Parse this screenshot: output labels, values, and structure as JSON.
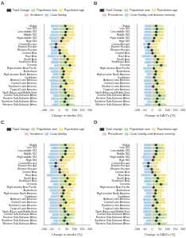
{
  "chart_data": [
    {
      "type": "bar",
      "title": "A",
      "orientation": "horizontal",
      "stacked": true,
      "grid": true,
      "legend": "top",
      "x_label": "Change in deaths (%)",
      "xlim": [
        -100,
        200
      ],
      "xticks": [
        -100,
        -50,
        0,
        50,
        100,
        150,
        200
      ],
      "categories": [
        "Global",
        "Low SDI",
        "Low-middle SDI",
        "Middle SDI",
        "High-middle SDI",
        "High SDI",
        "Central Europe",
        "Eastern Europe",
        "Western Europe",
        "Central Asia",
        "East Asia",
        "South Asia",
        "Southeast Asia",
        "Oceania",
        "High-income Asia Pacific",
        "Australasia",
        "High-income North America",
        "Caribbean",
        "Andean Latin America",
        "Central Latin America",
        "Southern Latin America",
        "Tropical Latin America",
        "North Africa and Middle East",
        "Central Sub-Saharan Africa",
        "Eastern Sub-Saharan Africa",
        "Southern Sub-Saharan Africa",
        "Western Sub-Saharan Africa"
      ],
      "series": [
        {
          "name": "Population size",
          "color": "#b5d99c",
          "values": [
            40,
            75,
            55,
            35,
            20,
            18,
            -5,
            -3,
            10,
            30,
            25,
            55,
            40,
            80,
            8,
            35,
            25,
            30,
            45,
            45,
            25,
            40,
            55,
            90,
            85,
            55,
            90
          ]
        },
        {
          "name": "Population age",
          "color": "#f2e17d",
          "values": [
            55,
            20,
            40,
            65,
            70,
            50,
            45,
            35,
            45,
            30,
            85,
            45,
            55,
            25,
            80,
            50,
            45,
            40,
            50,
            55,
            40,
            55,
            45,
            10,
            10,
            15,
            10
          ]
        },
        {
          "name": "Incidence",
          "color": "#f4b6c2",
          "values": [
            -10,
            -5,
            -8,
            -10,
            -12,
            -10,
            -10,
            -15,
            -8,
            -10,
            -15,
            -5,
            -8,
            -5,
            -12,
            -10,
            -8,
            -10,
            -12,
            -10,
            -10,
            -10,
            -10,
            -5,
            -8,
            -5,
            -5
          ]
        },
        {
          "name": "Case fatality",
          "color": "#a8d0e6",
          "values": [
            -45,
            -40,
            -45,
            -50,
            -55,
            -45,
            -50,
            -40,
            -45,
            -45,
            -60,
            -40,
            -45,
            -30,
            -55,
            -45,
            -35,
            -40,
            -50,
            -45,
            -45,
            -50,
            -50,
            -35,
            -45,
            -30,
            -40
          ]
        },
        {
          "name": "Total change",
          "type": "scatter",
          "marker": "circle",
          "color": "#333333",
          "values": [
            40,
            50,
            42,
            40,
            23,
            13,
            -20,
            -23,
            2,
            5,
            35,
            55,
            42,
            70,
            21,
            30,
            27,
            20,
            33,
            45,
            10,
            35,
            40,
            60,
            42,
            35,
            55
          ]
        }
      ]
    },
    {
      "type": "bar",
      "title": "B",
      "orientation": "horizontal",
      "stacked": true,
      "grid": true,
      "legend": "top",
      "x_label": "Change in DALYs (%)",
      "xlim": [
        -100,
        200
      ],
      "xticks": [
        -100,
        -50,
        0,
        50,
        100,
        150,
        200
      ],
      "categories": [
        "Global",
        "Low SDI",
        "Low-middle SDI",
        "Middle SDI",
        "High-middle SDI",
        "High SDI",
        "Central Europe",
        "Eastern Europe",
        "Western Europe",
        "Central Asia",
        "East Asia",
        "South Asia",
        "Southeast Asia",
        "Oceania",
        "High-income Asia Pacific",
        "Australasia",
        "High-income North America",
        "Caribbean",
        "Andean Latin America",
        "Central Latin America",
        "Southern Latin America",
        "Tropical Latin America",
        "North Africa and Middle East",
        "Central Sub-Saharan Africa",
        "Eastern Sub-Saharan Africa",
        "Southern Sub-Saharan Africa",
        "Western Sub-Saharan Africa"
      ],
      "series": [
        {
          "name": "Population size",
          "color": "#b5d99c",
          "values": [
            38,
            70,
            52,
            33,
            18,
            15,
            -5,
            -3,
            8,
            28,
            22,
            52,
            38,
            78,
            6,
            32,
            22,
            28,
            42,
            43,
            22,
            38,
            52,
            88,
            82,
            52,
            88
          ]
        },
        {
          "name": "Population age",
          "color": "#f2e17d",
          "values": [
            35,
            10,
            25,
            45,
            55,
            40,
            38,
            30,
            35,
            22,
            65,
            30,
            40,
            15,
            65,
            40,
            35,
            30,
            35,
            40,
            32,
            42,
            32,
            5,
            5,
            10,
            5
          ]
        },
        {
          "name": "Prevalence",
          "color": "#f4b6c2",
          "values": [
            -8,
            -5,
            -6,
            -8,
            -10,
            -8,
            -10,
            -12,
            -6,
            -8,
            -12,
            -5,
            -6,
            -5,
            -10,
            -8,
            -6,
            -8,
            -10,
            -8,
            -8,
            -8,
            -8,
            -5,
            -6,
            -5,
            -5
          ]
        },
        {
          "name": "Case fatality and disease severity",
          "color": "#a8d0e6",
          "values": [
            -40,
            -45,
            -45,
            -45,
            -50,
            -40,
            -45,
            -40,
            -40,
            -40,
            -55,
            -40,
            -42,
            -30,
            -50,
            -40,
            -30,
            -38,
            -45,
            -42,
            -40,
            -45,
            -45,
            -40,
            -48,
            -30,
            -42
          ]
        },
        {
          "name": "Total change",
          "type": "scatter",
          "marker": "circle",
          "color": "#333333",
          "values": [
            25,
            30,
            26,
            25,
            13,
            7,
            -22,
            -25,
            -3,
            2,
            20,
            37,
            30,
            58,
            11,
            24,
            21,
            12,
            22,
            33,
            6,
            27,
            31,
            48,
            33,
            27,
            46
          ]
        }
      ]
    },
    {
      "type": "bar",
      "title": "C",
      "orientation": "horizontal",
      "stacked": true,
      "grid": true,
      "legend": "top",
      "x_label": "Change in deaths (%)",
      "xlim": [
        -100,
        200
      ],
      "xticks": [
        -100,
        -50,
        0,
        50,
        100,
        150,
        200
      ],
      "categories": [
        "Global",
        "Low SDI",
        "Low-middle SDI",
        "Middle SDI",
        "High-middle SDI",
        "High SDI",
        "Central Europe",
        "Eastern Europe",
        "Western Europe",
        "Central Asia",
        "East Asia",
        "South Asia",
        "Southeast Asia",
        "Oceania",
        "High-income Asia Pacific",
        "Australasia",
        "High-income North America",
        "Caribbean",
        "Andean Latin America",
        "Central Latin America",
        "Southern Latin America",
        "Tropical Latin America",
        "North Africa and Middle East",
        "Central Sub-Saharan Africa",
        "Eastern Sub-Saharan Africa",
        "Southern Sub-Saharan Africa",
        "Western Sub-Saharan Africa"
      ],
      "series": [
        {
          "name": "Population size",
          "color": "#b5d99c",
          "values": [
            42,
            78,
            58,
            37,
            21,
            19,
            -6,
            -4,
            11,
            32,
            27,
            57,
            42,
            82,
            9,
            37,
            27,
            32,
            47,
            47,
            27,
            42,
            57,
            92,
            87,
            57,
            92
          ]
        },
        {
          "name": "Population age",
          "color": "#f2e17d",
          "values": [
            60,
            22,
            42,
            70,
            75,
            55,
            48,
            38,
            50,
            32,
            90,
            48,
            58,
            28,
            85,
            55,
            48,
            42,
            52,
            58,
            42,
            58,
            48,
            12,
            12,
            17,
            12
          ]
        },
        {
          "name": "Incidence",
          "color": "#f4b6c2",
          "values": [
            -12,
            -6,
            -9,
            -12,
            -14,
            -12,
            -12,
            -16,
            -9,
            -12,
            -17,
            -6,
            -9,
            -6,
            -14,
            -12,
            -9,
            -12,
            -14,
            -12,
            -12,
            -12,
            -12,
            -6,
            -9,
            -6,
            -6
          ]
        },
        {
          "name": "Case fatality",
          "color": "#a8d0e6",
          "values": [
            -50,
            -45,
            -50,
            -55,
            -60,
            -50,
            -52,
            -42,
            -50,
            -48,
            -65,
            -45,
            -50,
            -35,
            -60,
            -50,
            -40,
            -45,
            -55,
            -50,
            -48,
            -55,
            -55,
            -40,
            -50,
            -35,
            -45
          ]
        },
        {
          "name": "Total change",
          "type": "scatter",
          "marker": "circle",
          "color": "#333333",
          "values": [
            40,
            49,
            41,
            40,
            22,
            12,
            -22,
            -24,
            2,
            4,
            35,
            54,
            41,
            69,
            20,
            30,
            26,
            17,
            30,
            43,
            9,
            33,
            38,
            58,
            40,
            33,
            53
          ]
        }
      ]
    },
    {
      "type": "bar",
      "title": "D",
      "orientation": "horizontal",
      "stacked": true,
      "grid": true,
      "legend": "top",
      "x_label": "Change in DALYs (%)",
      "xlim": [
        -100,
        200
      ],
      "xticks": [
        -100,
        -50,
        0,
        50,
        100,
        150,
        200
      ],
      "categories": [
        "Global",
        "Low SDI",
        "Low-middle SDI",
        "Middle SDI",
        "High-middle SDI",
        "High SDI",
        "Central Europe",
        "Eastern Europe",
        "Western Europe",
        "Central Asia",
        "East Asia",
        "South Asia",
        "Southeast Asia",
        "Oceania",
        "High-income Asia Pacific",
        "Australasia",
        "High-income North America",
        "Caribbean",
        "Andean Latin America",
        "Central Latin America",
        "Southern Latin America",
        "Tropical Latin America",
        "North Africa and Middle East",
        "Central Sub-Saharan Africa",
        "Eastern Sub-Saharan Africa",
        "Southern Sub-Saharan Africa",
        "Western Sub-Saharan Africa"
      ],
      "series": [
        {
          "name": "Population size",
          "color": "#b5d99c",
          "values": [
            40,
            72,
            54,
            35,
            19,
            16,
            -6,
            -4,
            9,
            30,
            24,
            54,
            40,
            80,
            7,
            34,
            24,
            30,
            44,
            45,
            24,
            40,
            54,
            90,
            84,
            54,
            90
          ]
        },
        {
          "name": "Population age",
          "color": "#f2e17d",
          "values": [
            38,
            12,
            28,
            48,
            58,
            42,
            40,
            32,
            38,
            24,
            68,
            32,
            42,
            17,
            68,
            42,
            38,
            32,
            38,
            42,
            34,
            44,
            34,
            7,
            7,
            12,
            7
          ]
        },
        {
          "name": "Prevalence",
          "color": "#f4b6c2",
          "values": [
            -9,
            -6,
            -7,
            -9,
            -11,
            -9,
            -11,
            -13,
            -7,
            -9,
            -13,
            -6,
            -7,
            -6,
            -11,
            -9,
            -7,
            -9,
            -11,
            -9,
            -9,
            -9,
            -9,
            -6,
            -7,
            -6,
            -6
          ]
        },
        {
          "name": "Case fatality and disease severity",
          "color": "#a8d0e6",
          "values": [
            -45,
            -48,
            -48,
            -50,
            -55,
            -44,
            -48,
            -42,
            -44,
            -44,
            -60,
            -44,
            -46,
            -34,
            -55,
            -44,
            -34,
            -42,
            -50,
            -46,
            -44,
            -50,
            -50,
            -44,
            -52,
            -34,
            -46
          ]
        },
        {
          "name": "Total change",
          "type": "scatter",
          "marker": "circle",
          "color": "#333333",
          "values": [
            24,
            30,
            27,
            24,
            11,
            5,
            -25,
            -27,
            -4,
            1,
            19,
            36,
            29,
            57,
            9,
            23,
            21,
            11,
            21,
            32,
            5,
            25,
            29,
            47,
            32,
            26,
            45
          ]
        }
      ]
    }
  ]
}
